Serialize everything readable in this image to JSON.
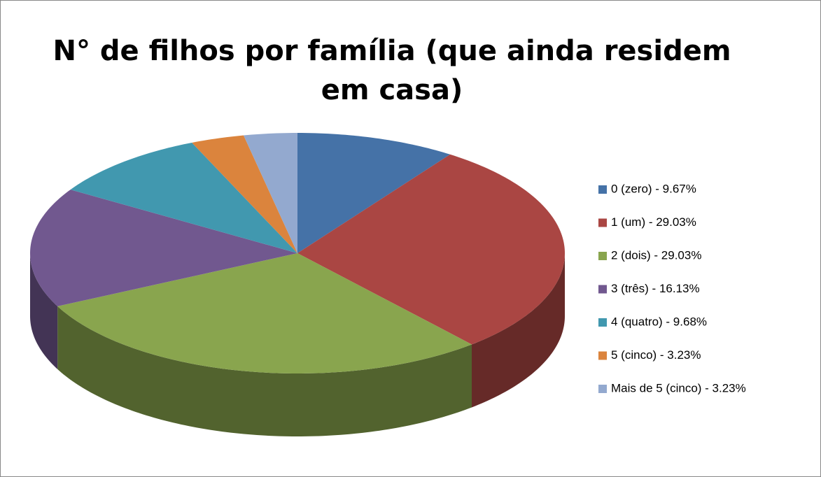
{
  "chart_data": {
    "type": "pie",
    "title": "N° de filhos por família (que ainda residem em casa)",
    "categories": [
      "0 (zero) - 9.67%",
      "1 (um) - 29.03%",
      "2 (dois) - 29.03%",
      "3 (três) - 16.13%",
      "4 (quatro) - 9.68%",
      "5 (cinco) - 3.23%",
      "Mais de 5 (cinco) - 3.23%"
    ],
    "values": [
      9.67,
      29.03,
      29.03,
      16.13,
      9.68,
      3.23,
      3.23
    ],
    "colors": [
      "#4572a7",
      "#aa4643",
      "#89a54e",
      "#71588f",
      "#4198af",
      "#db843d",
      "#93a9cf"
    ],
    "legend": "right"
  }
}
